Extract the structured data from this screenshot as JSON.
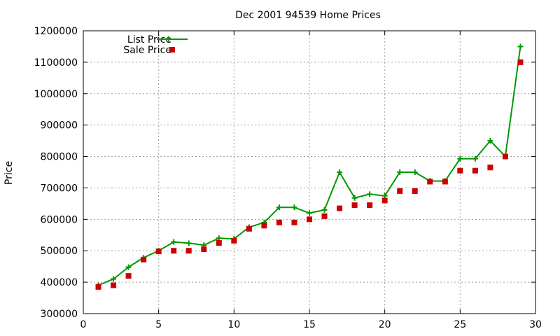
{
  "chart_data": {
    "type": "line",
    "title": "Dec 2001 94539 Home Prices",
    "xlabel": "",
    "ylabel": "Price",
    "xlim": [
      0,
      30
    ],
    "ylim": [
      300000,
      1200000
    ],
    "x_ticks": [
      0,
      5,
      10,
      15,
      20,
      25,
      30
    ],
    "y_ticks": [
      300000,
      400000,
      500000,
      600000,
      700000,
      800000,
      900000,
      1000000,
      1100000,
      1200000
    ],
    "grid": true,
    "legend_position": "top-left",
    "x": [
      1,
      2,
      3,
      4,
      5,
      6,
      7,
      8,
      9,
      10,
      11,
      12,
      13,
      14,
      15,
      16,
      17,
      18,
      19,
      20,
      21,
      22,
      23,
      24,
      25,
      26,
      27,
      28,
      29
    ],
    "series": [
      {
        "name": "List Price",
        "style": "line-with-plus-markers",
        "color": "#009900",
        "values": [
          390000,
          410000,
          448000,
          478000,
          500000,
          528000,
          524000,
          518000,
          540000,
          538000,
          575000,
          590000,
          638000,
          638000,
          620000,
          630000,
          750000,
          668000,
          680000,
          675000,
          750000,
          750000,
          722000,
          722000,
          793000,
          793000,
          850000,
          800000,
          1150000
        ]
      },
      {
        "name": "Sale Price",
        "style": "square-markers",
        "color": "#cc0000",
        "values": [
          385000,
          390000,
          420000,
          472000,
          498000,
          500000,
          500000,
          505000,
          525000,
          532000,
          570000,
          580000,
          590000,
          590000,
          600000,
          610000,
          635000,
          645000,
          645000,
          660000,
          690000,
          690000,
          720000,
          720000,
          755000,
          755000,
          765000,
          800000,
          1100000
        ]
      }
    ]
  }
}
